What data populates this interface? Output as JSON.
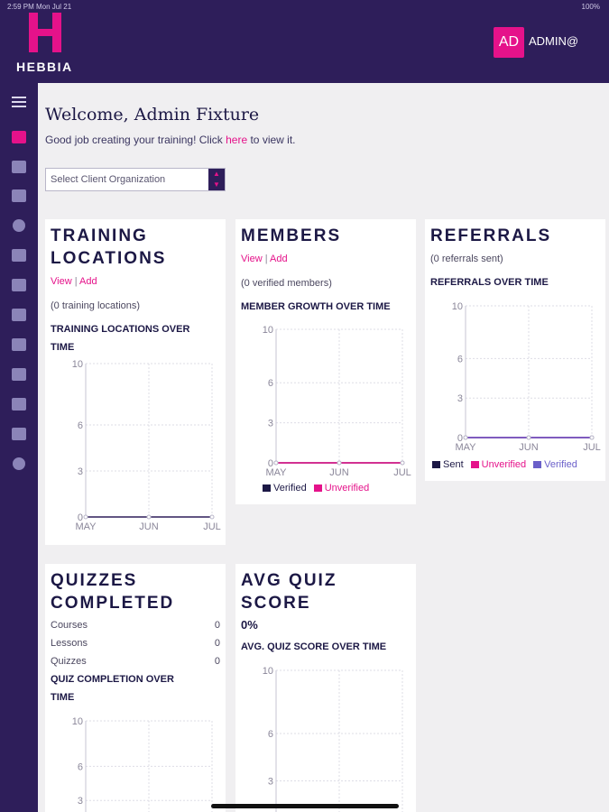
{
  "status": {
    "time": "2:59 PM  Mon Jul 21",
    "right": "100%"
  },
  "brand": {
    "name": "HEBBIA"
  },
  "user": {
    "initials": "AD",
    "name": "ADMIN@"
  },
  "welcome": {
    "title": "Welcome, Admin Fixture",
    "subtitle_pre": "Good job creating your training! Click ",
    "subtitle_link": "here",
    "subtitle_post": " to view it."
  },
  "org_select": {
    "value": "Select Client Organization"
  },
  "cards": {
    "training": {
      "title_line1": "TRAINING",
      "title_line2": "LOCATIONS",
      "view": "View",
      "add": "Add",
      "count": "(0 training locations)",
      "chart_title_line1": "TRAINING LOCATIONS OVER",
      "chart_title_line2": "TIME"
    },
    "members": {
      "title": "MEMBERS",
      "view": "View",
      "add": "Add",
      "count": "(0 verified members)",
      "chart_title": "MEMBER GROWTH OVER TIME",
      "legend": [
        "Verified",
        "Unverified"
      ]
    },
    "referrals": {
      "title": "REFERRALS",
      "count": "(0 referrals sent)",
      "chart_title": "REFERRALS OVER TIME",
      "legend": [
        "Sent",
        "Unverified",
        "Verified"
      ]
    },
    "quizzes": {
      "title_line1": "QUIZZES",
      "title_line2": "COMPLETED",
      "rows": [
        {
          "label": "Courses",
          "value": "0"
        },
        {
          "label": "Lessons",
          "value": "0"
        },
        {
          "label": "Quizzes",
          "value": "0"
        }
      ],
      "chart_title_line1": "QUIZ COMPLETION OVER",
      "chart_title_line2": "TIME"
    },
    "avgquiz": {
      "title_line1": "AVG QUIZ",
      "title_line2": "SCORE",
      "percent": "0%",
      "chart_title": "AVG. QUIZ SCORE OVER TIME"
    }
  },
  "colors": {
    "accent": "#e5128a",
    "navy": "#2e1e5a",
    "verified": "#1c1845",
    "unverified": "#e5128a",
    "verified_blue": "#6a5fc9"
  },
  "icons": [
    "menu-icon",
    "dashboard-icon",
    "book-icon",
    "people-icon",
    "target-icon",
    "folder-icon",
    "calendar-icon",
    "clipboard-icon",
    "trophy-icon",
    "layout-icon",
    "calendar-check-icon",
    "report-icon",
    "user-circle-icon"
  ],
  "chart_data": [
    {
      "type": "line",
      "title": "TRAINING LOCATIONS OVER TIME",
      "categories": [
        "MAY",
        "JUN",
        "JUL"
      ],
      "series": [
        {
          "values": [
            0,
            0,
            0
          ]
        }
      ],
      "yticks": [
        0,
        3,
        6,
        10
      ],
      "ylim": [
        0,
        10
      ]
    },
    {
      "type": "line",
      "title": "MEMBER GROWTH OVER TIME",
      "categories": [
        "MAY",
        "JUN",
        "JUL"
      ],
      "series": [
        {
          "name": "Verified",
          "values": [
            0,
            0,
            0
          ]
        },
        {
          "name": "Unverified",
          "values": [
            0,
            0,
            0
          ]
        }
      ],
      "yticks": [
        0,
        3,
        6,
        10
      ],
      "ylim": [
        0,
        10
      ]
    },
    {
      "type": "line",
      "title": "REFERRALS OVER TIME",
      "categories": [
        "MAY",
        "JUN",
        "JUL"
      ],
      "series": [
        {
          "name": "Sent",
          "values": [
            0,
            0,
            0
          ]
        },
        {
          "name": "Unverified",
          "values": [
            0,
            0,
            0
          ]
        },
        {
          "name": "Verified",
          "values": [
            0,
            0,
            0
          ]
        }
      ],
      "yticks": [
        0,
        3,
        6,
        10
      ],
      "ylim": [
        0,
        10
      ]
    },
    {
      "type": "line",
      "title": "QUIZ COMPLETION OVER TIME",
      "categories": [],
      "series": [],
      "yticks": [
        3,
        6,
        10
      ],
      "ylim": [
        0,
        10
      ]
    },
    {
      "type": "line",
      "title": "AVG. QUIZ SCORE OVER TIME",
      "categories": [],
      "series": [],
      "yticks": [
        3,
        6,
        10
      ],
      "ylim": [
        0,
        10
      ]
    }
  ]
}
